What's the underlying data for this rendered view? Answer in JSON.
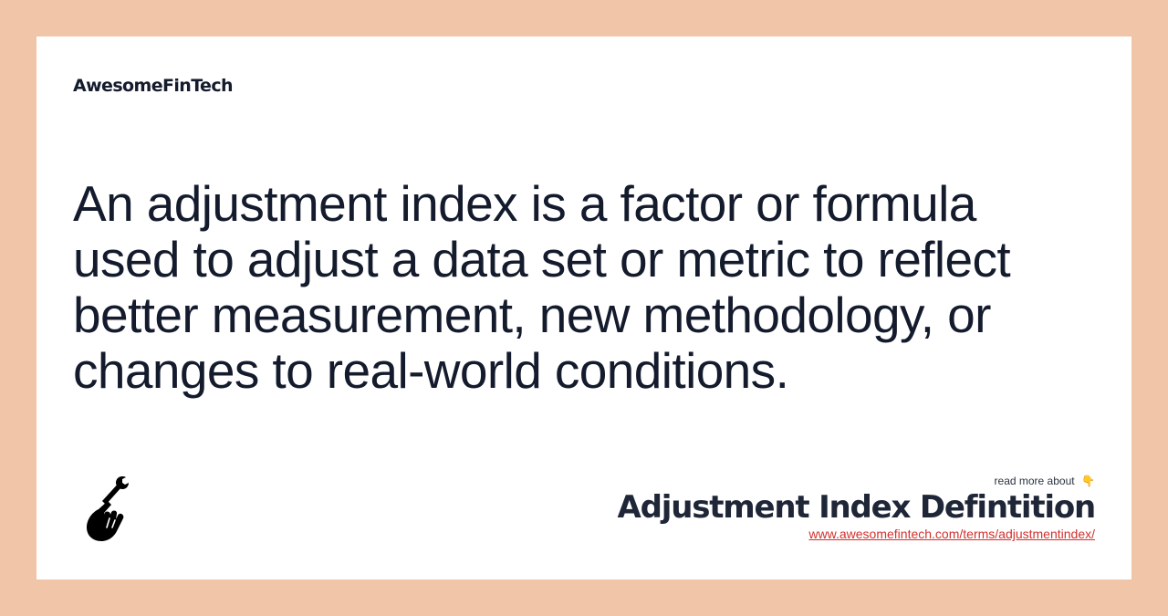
{
  "brand": {
    "name": "AwesomeFinTech"
  },
  "definition": {
    "text": "An adjustment index is a factor or formula used to adjust a data set or metric to reflect better measurement, new methodology, or changes to real-world conditions."
  },
  "footer": {
    "read_more_label": "read more about",
    "pointer_icon": "👇",
    "term_title": "Adjustment Index Defintition",
    "term_url": "www.awesomefintech.com/terms/adjustmentindex/",
    "logo_icon": "hand-wrench-icon"
  },
  "colors": {
    "page_background": "#f0c5a8",
    "card_background": "#ffffff",
    "text_dark": "#141b2d",
    "link_red": "#d0312d"
  }
}
